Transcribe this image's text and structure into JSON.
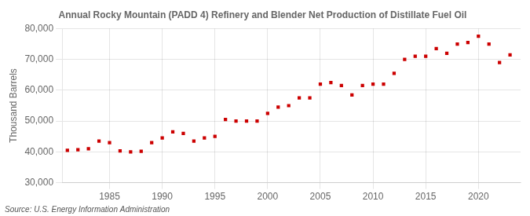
{
  "chart_data": {
    "type": "scatter",
    "title": "Annual Rocky Mountain (PADD 4) Refinery and Blender Net Production of Distillate Fuel Oil",
    "ylabel": "Thousand Barrels",
    "annotations": [
      "Source: U.S. Energy Information Administration"
    ],
    "x": [
      1981,
      1982,
      1983,
      1984,
      1985,
      1986,
      1987,
      1988,
      1989,
      1990,
      1991,
      1992,
      1993,
      1994,
      1995,
      1996,
      1997,
      1998,
      1999,
      2000,
      2001,
      2002,
      2003,
      2004,
      2005,
      2006,
      2007,
      2008,
      2009,
      2010,
      2011,
      2012,
      2013,
      2014,
      2015,
      2016,
      2017,
      2018,
      2019,
      2020,
      2021,
      2022,
      2023
    ],
    "values": [
      40500,
      40700,
      41000,
      43500,
      43000,
      40300,
      40000,
      40200,
      43000,
      44500,
      46500,
      46000,
      43500,
      44500,
      45000,
      50500,
      50000,
      50000,
      50000,
      52500,
      54500,
      55000,
      57500,
      57500,
      62000,
      62500,
      61500,
      58500,
      61500,
      62000,
      62000,
      65500,
      70000,
      71000,
      71000,
      73500,
      72000,
      75000,
      75500,
      77500,
      75000,
      69000,
      71500
    ],
    "color": "#cc0000",
    "marker": "square",
    "xlim": [
      1980.5,
      2024
    ],
    "ylim": [
      30000,
      80000
    ],
    "xticks": [
      1985,
      1990,
      1995,
      2000,
      2005,
      2010,
      2015,
      2020
    ],
    "yticks": [
      {
        "value": 30000,
        "label": "30,000"
      },
      {
        "value": 40000,
        "label": "40,000"
      },
      {
        "value": 50000,
        "label": "50,000"
      },
      {
        "value": 60000,
        "label": "60,000"
      },
      {
        "value": 70000,
        "label": "70,000"
      },
      {
        "value": 80000,
        "label": "80,000"
      }
    ],
    "grid": true
  }
}
